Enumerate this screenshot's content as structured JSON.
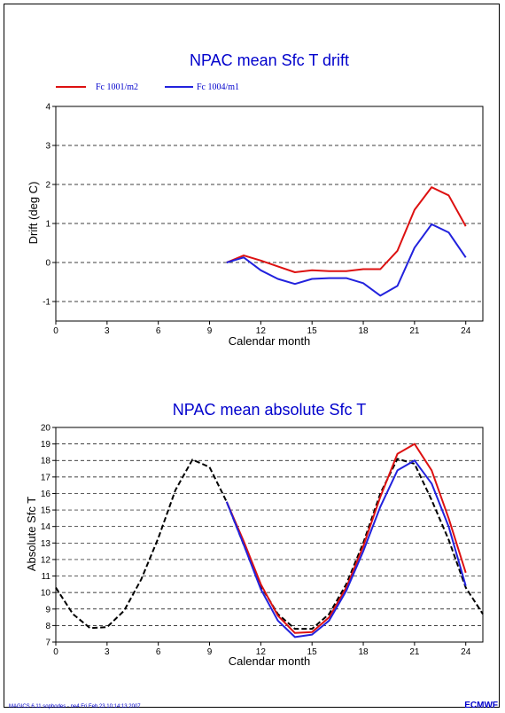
{
  "colors": {
    "red": "#dd1111",
    "blue": "#2222dd",
    "black": "#000000",
    "title": "#0000cc"
  },
  "chart_data": [
    {
      "type": "line",
      "title": "NPAC mean Sfc T drift",
      "xlabel": "Calendar month",
      "ylabel": "Drift (deg C)",
      "xlim": [
        0,
        25
      ],
      "ylim": [
        -1.5,
        4
      ],
      "xticks": [
        0,
        3,
        6,
        9,
        12,
        15,
        18,
        21,
        24
      ],
      "yticks": [
        -1,
        0,
        1,
        2,
        3,
        4
      ],
      "grid": "horizontal dashed",
      "legend": "top-left",
      "series": [
        {
          "name": "Fc 1001/m2",
          "color": "#dd1111",
          "x": [
            10,
            11,
            12,
            13,
            14,
            15,
            16,
            17,
            18,
            19,
            20,
            21,
            22,
            23,
            24
          ],
          "y": [
            0.0,
            0.18,
            0.05,
            -0.1,
            -0.25,
            -0.2,
            -0.22,
            -0.22,
            -0.17,
            -0.17,
            0.3,
            1.35,
            1.93,
            1.72,
            0.93
          ]
        },
        {
          "name": "Fc 1004/m1",
          "color": "#2222dd",
          "x": [
            10,
            11,
            12,
            13,
            14,
            15,
            16,
            17,
            18,
            19,
            20,
            21,
            22,
            23,
            24
          ],
          "y": [
            0.0,
            0.13,
            -0.2,
            -0.42,
            -0.55,
            -0.42,
            -0.4,
            -0.4,
            -0.53,
            -0.85,
            -0.6,
            0.38,
            0.98,
            0.77,
            0.13
          ]
        }
      ]
    },
    {
      "type": "line",
      "title": "NPAC mean absolute Sfc T",
      "xlabel": "Calendar month",
      "ylabel": "Absolute Sfc T",
      "xlim": [
        0,
        25
      ],
      "ylim": [
        7,
        20
      ],
      "xticks": [
        0,
        3,
        6,
        9,
        12,
        15,
        18,
        21,
        24
      ],
      "yticks": [
        7,
        8,
        9,
        10,
        11,
        12,
        13,
        14,
        15,
        16,
        17,
        18,
        19,
        20
      ],
      "grid": "horizontal dashed",
      "series": [
        {
          "color": "#000000",
          "dashed": true,
          "x": [
            0,
            1,
            2,
            3,
            4,
            5,
            6,
            7,
            8,
            9,
            10,
            11,
            12,
            13,
            14,
            15,
            16,
            17,
            18,
            19,
            20,
            21,
            22,
            23,
            24,
            25
          ],
          "y": [
            10.3,
            8.7,
            7.85,
            7.9,
            8.9,
            10.8,
            13.3,
            16.2,
            18.05,
            17.6,
            15.5,
            12.9,
            10.4,
            8.7,
            7.8,
            7.8,
            8.7,
            10.5,
            13.0,
            16.0,
            18.1,
            17.8,
            15.6,
            13.2,
            10.3,
            8.7
          ]
        },
        {
          "color": "#dd1111",
          "x": [
            10,
            11,
            12,
            13,
            14,
            15,
            16,
            17,
            18,
            19,
            20,
            21,
            22,
            23,
            24
          ],
          "y": [
            15.5,
            13.1,
            10.5,
            8.6,
            7.55,
            7.6,
            8.5,
            10.3,
            12.8,
            15.8,
            18.4,
            19.0,
            17.4,
            14.5,
            11.2
          ]
        },
        {
          "color": "#2222dd",
          "x": [
            10,
            11,
            12,
            13,
            14,
            15,
            16,
            17,
            18,
            19,
            20,
            21,
            22,
            23,
            24
          ],
          "y": [
            15.5,
            12.9,
            10.2,
            8.3,
            7.3,
            7.45,
            8.3,
            10.1,
            12.5,
            15.2,
            17.4,
            18.0,
            16.6,
            14.0,
            10.4
          ]
        }
      ]
    }
  ],
  "footer": {
    "text": "MAGICS 6.11 sophodes - ne4 Fri Feb 23 10:14:13 2007",
    "logo": "ECMWF"
  }
}
